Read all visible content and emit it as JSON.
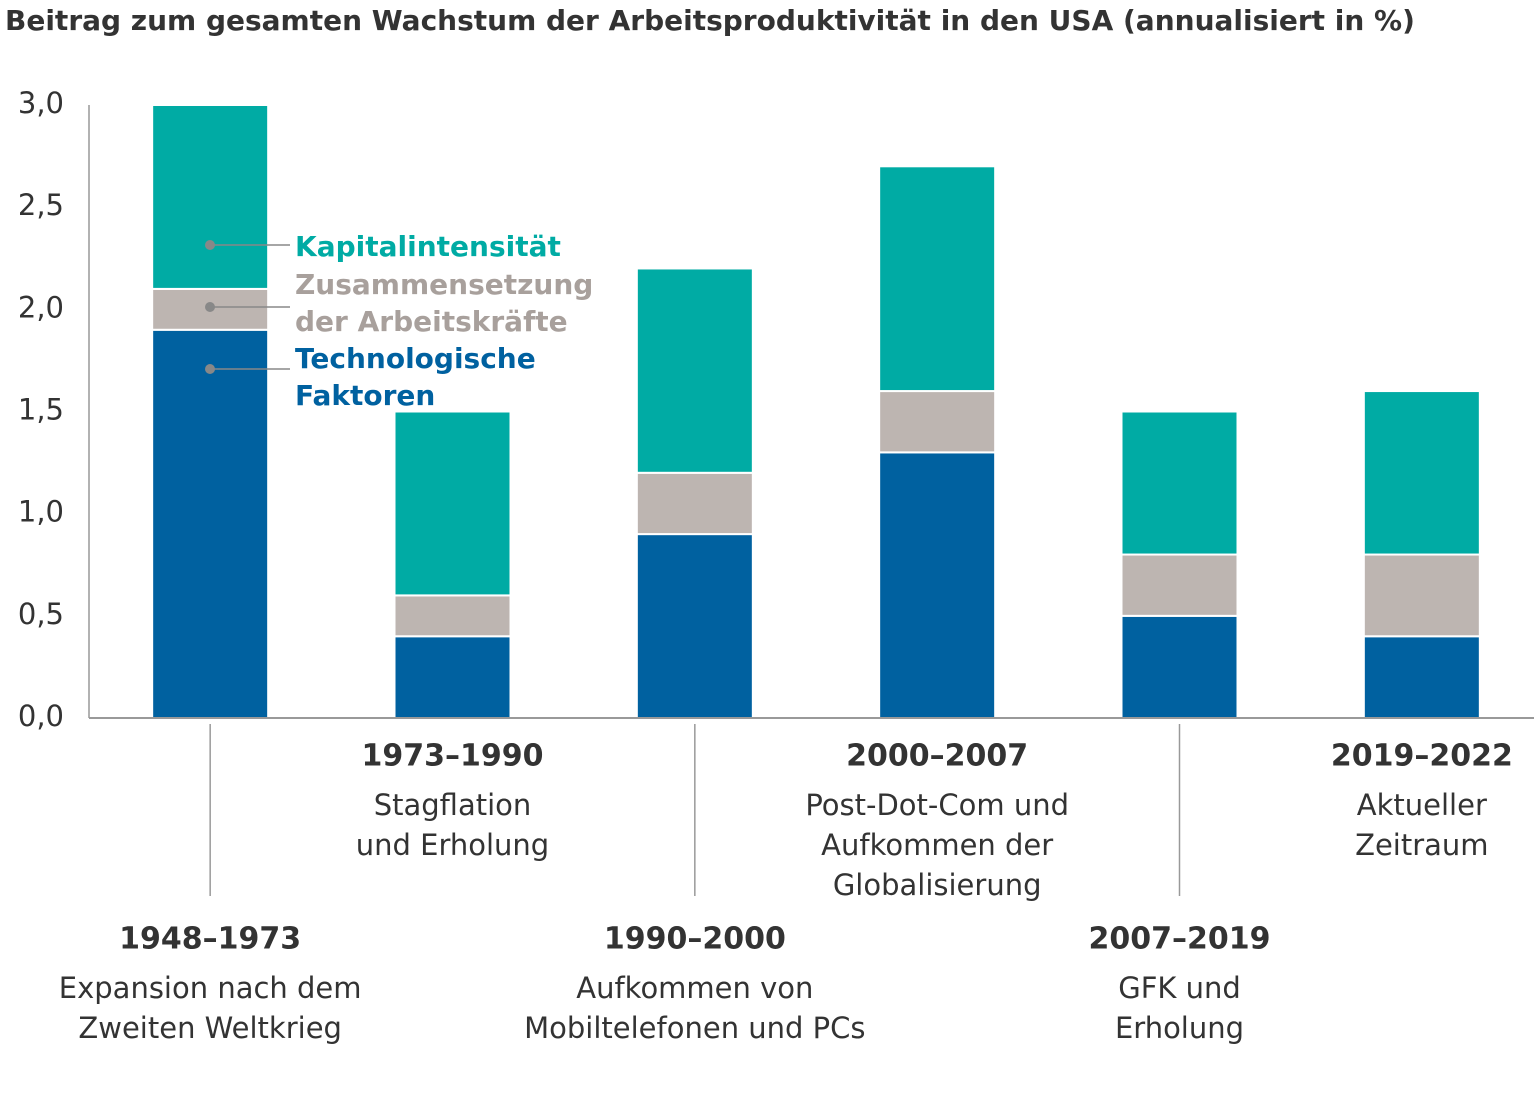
{
  "chart_data": {
    "type": "stacked_bar",
    "title": "Beitrag zum gesamten Wachstum der Arbeitsproduktivität in den USA (annualisiert in %)",
    "categories": [
      "1948–1973",
      "1973–1990",
      "1990–2000",
      "2000–2007",
      "2007–2019",
      "2019–2022"
    ],
    "category_descriptions": [
      [
        "Expansion nach dem",
        "Zweiten Weltkrieg"
      ],
      [
        "Stagflation",
        "und Erholung"
      ],
      [
        "Aufkommen von",
        "Mobiltelefonen und PCs"
      ],
      [
        "Post-Dot-Com und",
        "Aufkommen der",
        "Globalisierung"
      ],
      [
        "GFK und",
        "Erholung"
      ],
      [
        "Aktueller",
        "Zeitraum"
      ]
    ],
    "series": [
      {
        "name": "Technologische Faktoren",
        "color": "#0061a0",
        "values": [
          1.9,
          0.4,
          0.9,
          1.3,
          0.5,
          0.4
        ]
      },
      {
        "name": "Zusammensetzung der Arbeitskräfte",
        "color": "#bdb5b1",
        "values": [
          0.2,
          0.2,
          0.3,
          0.3,
          0.3,
          0.4
        ]
      },
      {
        "name": "Kapitalintensität",
        "color": "#00aba4",
        "values": [
          0.9,
          0.9,
          1.0,
          1.1,
          0.7,
          0.8
        ]
      }
    ],
    "ylim": [
      0,
      3
    ],
    "yticks": [
      {
        "value": 0,
        "label": "0,0"
      },
      {
        "value": 0.5,
        "label": "0,5"
      },
      {
        "value": 1,
        "label": "1,0"
      },
      {
        "value": 1.5,
        "label": "1,5"
      },
      {
        "value": 2,
        "label": "2,0"
      },
      {
        "value": 2.5,
        "label": "2,5"
      },
      {
        "value": 3,
        "label": "3,0"
      }
    ]
  }
}
